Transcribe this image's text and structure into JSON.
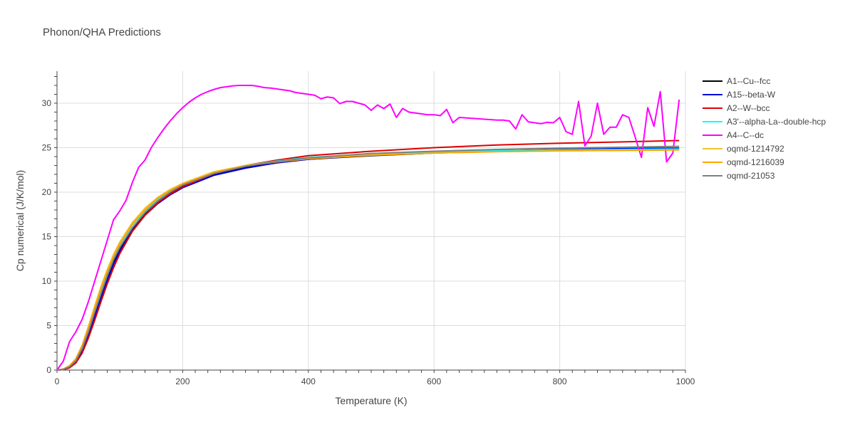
{
  "chart_data": {
    "type": "line",
    "title": "Phonon/QHA Predictions",
    "xlabel": "Temperature (K)",
    "ylabel": "Cp numerical (J/K/mol)",
    "xlim": [
      0,
      1000
    ],
    "ylim": [
      0,
      33.6
    ],
    "xticks": [
      0,
      200,
      400,
      600,
      800,
      1000
    ],
    "yticks": [
      0,
      5,
      10,
      15,
      20,
      25,
      30
    ],
    "grid": true,
    "legend_position": "right",
    "series": [
      {
        "name": "A1--Cu--fcc",
        "color": "#000000",
        "x": [
          0,
          10,
          20,
          30,
          40,
          50,
          60,
          70,
          80,
          90,
          100,
          120,
          140,
          160,
          180,
          200,
          250,
          300,
          350,
          400,
          500,
          600,
          700,
          800,
          900,
          990
        ],
        "y": [
          0,
          0.08,
          0.35,
          1.0,
          2.3,
          4.2,
          6.3,
          8.4,
          10.4,
          12.2,
          13.6,
          15.9,
          17.6,
          18.9,
          19.9,
          20.7,
          22.0,
          22.8,
          23.3,
          23.7,
          24.1,
          24.4,
          24.6,
          24.7,
          24.8,
          24.85
        ]
      },
      {
        "name": "A15--beta-W",
        "color": "#0000dd",
        "x": [
          0,
          10,
          20,
          30,
          40,
          50,
          60,
          70,
          80,
          90,
          100,
          120,
          140,
          160,
          180,
          200,
          250,
          300,
          350,
          400,
          500,
          600,
          700,
          800,
          900,
          990
        ],
        "y": [
          0,
          0.05,
          0.3,
          0.9,
          2.1,
          3.9,
          6.0,
          8.1,
          10.1,
          11.9,
          13.4,
          15.7,
          17.4,
          18.7,
          19.7,
          20.5,
          21.9,
          22.7,
          23.3,
          23.7,
          24.15,
          24.45,
          24.65,
          24.8,
          24.9,
          24.95
        ]
      },
      {
        "name": "A2--W--bcc",
        "color": "#dd0000",
        "x": [
          0,
          10,
          20,
          30,
          40,
          50,
          60,
          70,
          80,
          90,
          100,
          120,
          140,
          160,
          180,
          200,
          250,
          300,
          350,
          400,
          500,
          600,
          700,
          800,
          900,
          990
        ],
        "y": [
          0,
          0.05,
          0.25,
          0.8,
          1.9,
          3.6,
          5.6,
          7.7,
          9.7,
          11.5,
          13.1,
          15.6,
          17.4,
          18.8,
          19.8,
          20.6,
          22.1,
          23.0,
          23.6,
          24.1,
          24.6,
          25.0,
          25.3,
          25.5,
          25.65,
          25.8
        ]
      },
      {
        "name": "A3'--alpha-La--double-hcp",
        "color": "#00ffff",
        "x": [
          0,
          10,
          20,
          30,
          40,
          50,
          60,
          70,
          80,
          90,
          100,
          120,
          140,
          160,
          180,
          200,
          250,
          300,
          350,
          400,
          500,
          600,
          700,
          800,
          900,
          990
        ],
        "y": [
          0,
          0.1,
          0.4,
          1.1,
          2.5,
          4.5,
          6.8,
          9.0,
          11.0,
          12.7,
          14.1,
          16.3,
          17.9,
          19.2,
          20.1,
          20.9,
          22.2,
          23.0,
          23.5,
          23.9,
          24.3,
          24.5,
          24.65,
          24.75,
          24.8,
          24.85
        ]
      },
      {
        "name": "A4--C--dc",
        "color": "#ff00ff",
        "x": [
          0,
          10,
          20,
          30,
          40,
          50,
          60,
          70,
          80,
          90,
          100,
          110,
          120,
          130,
          140,
          150,
          160,
          170,
          180,
          190,
          200,
          210,
          220,
          230,
          240,
          250,
          260,
          270,
          280,
          290,
          300,
          310,
          320,
          330,
          340,
          350,
          360,
          370,
          380,
          390,
          400,
          410,
          420,
          430,
          440,
          450,
          460,
          470,
          480,
          490,
          500,
          510,
          520,
          530,
          540,
          550,
          560,
          570,
          580,
          590,
          600,
          610,
          620,
          630,
          640,
          650,
          660,
          670,
          680,
          690,
          700,
          710,
          720,
          730,
          740,
          750,
          760,
          770,
          780,
          790,
          800,
          810,
          820,
          830,
          840,
          850,
          860,
          870,
          880,
          890,
          900,
          910,
          920,
          930,
          940,
          950,
          960,
          970,
          980,
          990
        ],
        "y": [
          0,
          1.0,
          3.2,
          4.3,
          5.7,
          7.7,
          10.0,
          12.3,
          14.6,
          16.9,
          17.9,
          19.1,
          21.1,
          22.8,
          23.6,
          25.0,
          26.1,
          27.1,
          28.0,
          28.8,
          29.5,
          30.1,
          30.6,
          31.0,
          31.3,
          31.55,
          31.75,
          31.85,
          31.95,
          32.0,
          32.0,
          32.0,
          31.9,
          31.75,
          31.7,
          31.6,
          31.5,
          31.4,
          31.2,
          31.1,
          31.0,
          30.9,
          30.5,
          30.7,
          30.6,
          29.95,
          30.2,
          30.2,
          30.0,
          29.8,
          29.2,
          29.8,
          29.4,
          29.9,
          28.4,
          29.4,
          29.0,
          28.9,
          28.8,
          28.7,
          28.7,
          28.6,
          29.3,
          27.8,
          28.4,
          28.35,
          28.3,
          28.25,
          28.2,
          28.15,
          28.1,
          28.1,
          28.0,
          27.1,
          28.7,
          27.9,
          27.8,
          27.7,
          27.85,
          27.8,
          28.4,
          26.8,
          26.5,
          30.2,
          25.2,
          26.3,
          30.0,
          26.5,
          27.3,
          27.3,
          28.7,
          28.4,
          26.2,
          23.9,
          29.5,
          27.4,
          31.3,
          23.4,
          24.4,
          30.4
        ]
      },
      {
        "name": "oqmd-1214792",
        "color": "#f2c230",
        "x": [
          0,
          10,
          20,
          30,
          40,
          50,
          60,
          70,
          80,
          90,
          100,
          120,
          140,
          160,
          180,
          200,
          250,
          300,
          350,
          400,
          500,
          600,
          700,
          800,
          900,
          990
        ],
        "y": [
          0,
          0.12,
          0.5,
          1.3,
          2.8,
          4.9,
          7.2,
          9.4,
          11.3,
          13.0,
          14.4,
          16.6,
          18.2,
          19.4,
          20.3,
          21.0,
          22.3,
          23.0,
          23.45,
          23.8,
          24.2,
          24.4,
          24.55,
          24.65,
          24.7,
          24.75
        ]
      },
      {
        "name": "oqmd-1216039",
        "color": "#ffa500",
        "x": [
          0,
          10,
          20,
          30,
          40,
          50,
          60,
          70,
          80,
          90,
          100,
          120,
          140,
          160,
          180,
          200,
          250,
          300,
          350,
          400,
          500,
          600,
          700,
          800,
          900,
          990
        ],
        "y": [
          0,
          0.11,
          0.45,
          1.2,
          2.7,
          4.8,
          7.0,
          9.2,
          11.1,
          12.8,
          14.2,
          16.4,
          18.0,
          19.3,
          20.2,
          20.9,
          22.2,
          22.95,
          23.4,
          23.75,
          24.15,
          24.4,
          24.55,
          24.65,
          24.7,
          24.75
        ]
      },
      {
        "name": "oqmd-21053",
        "color": "#808080",
        "x": [
          0,
          10,
          20,
          30,
          40,
          50,
          60,
          70,
          80,
          90,
          100,
          120,
          140,
          160,
          180,
          200,
          250,
          300,
          350,
          400,
          500,
          600,
          700,
          800,
          900,
          990
        ],
        "y": [
          0,
          0.08,
          0.38,
          1.05,
          2.4,
          4.3,
          6.5,
          8.6,
          10.6,
          12.4,
          13.8,
          16.0,
          17.7,
          19.0,
          20.0,
          20.8,
          22.1,
          22.9,
          23.45,
          23.85,
          24.35,
          24.6,
          24.8,
          24.95,
          25.05,
          25.15
        ]
      }
    ]
  }
}
